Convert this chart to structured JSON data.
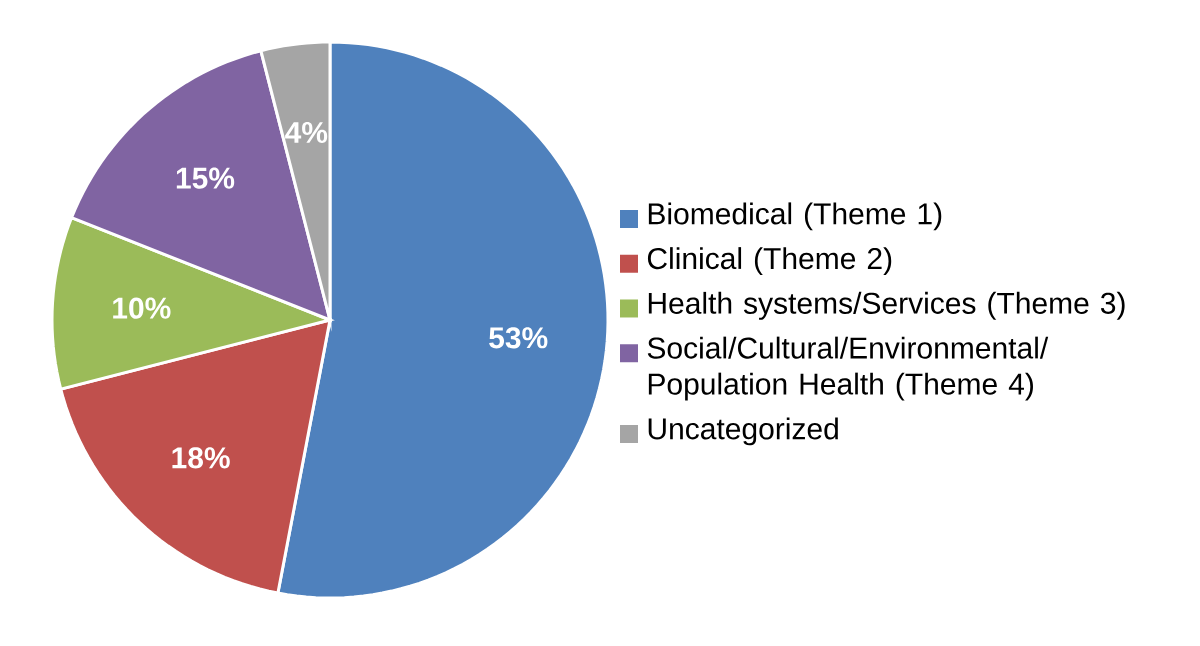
{
  "chart_data": {
    "type": "pie",
    "categories": [
      "Biomedical (Theme 1)",
      "Clinical (Theme 2)",
      "Health systems/Services (Theme 3)",
      "Social/Cultural/Environmental/ Population Health (Theme 4)",
      "Uncategorized"
    ],
    "values": [
      53,
      18,
      10,
      15,
      4
    ],
    "colors": [
      "#4f81bd",
      "#c0504d",
      "#9bbb59",
      "#8064a2",
      "#a5a5a5"
    ],
    "value_labels": [
      "53%",
      "18%",
      "10%",
      "15%",
      "4%"
    ],
    "legend": "right"
  }
}
